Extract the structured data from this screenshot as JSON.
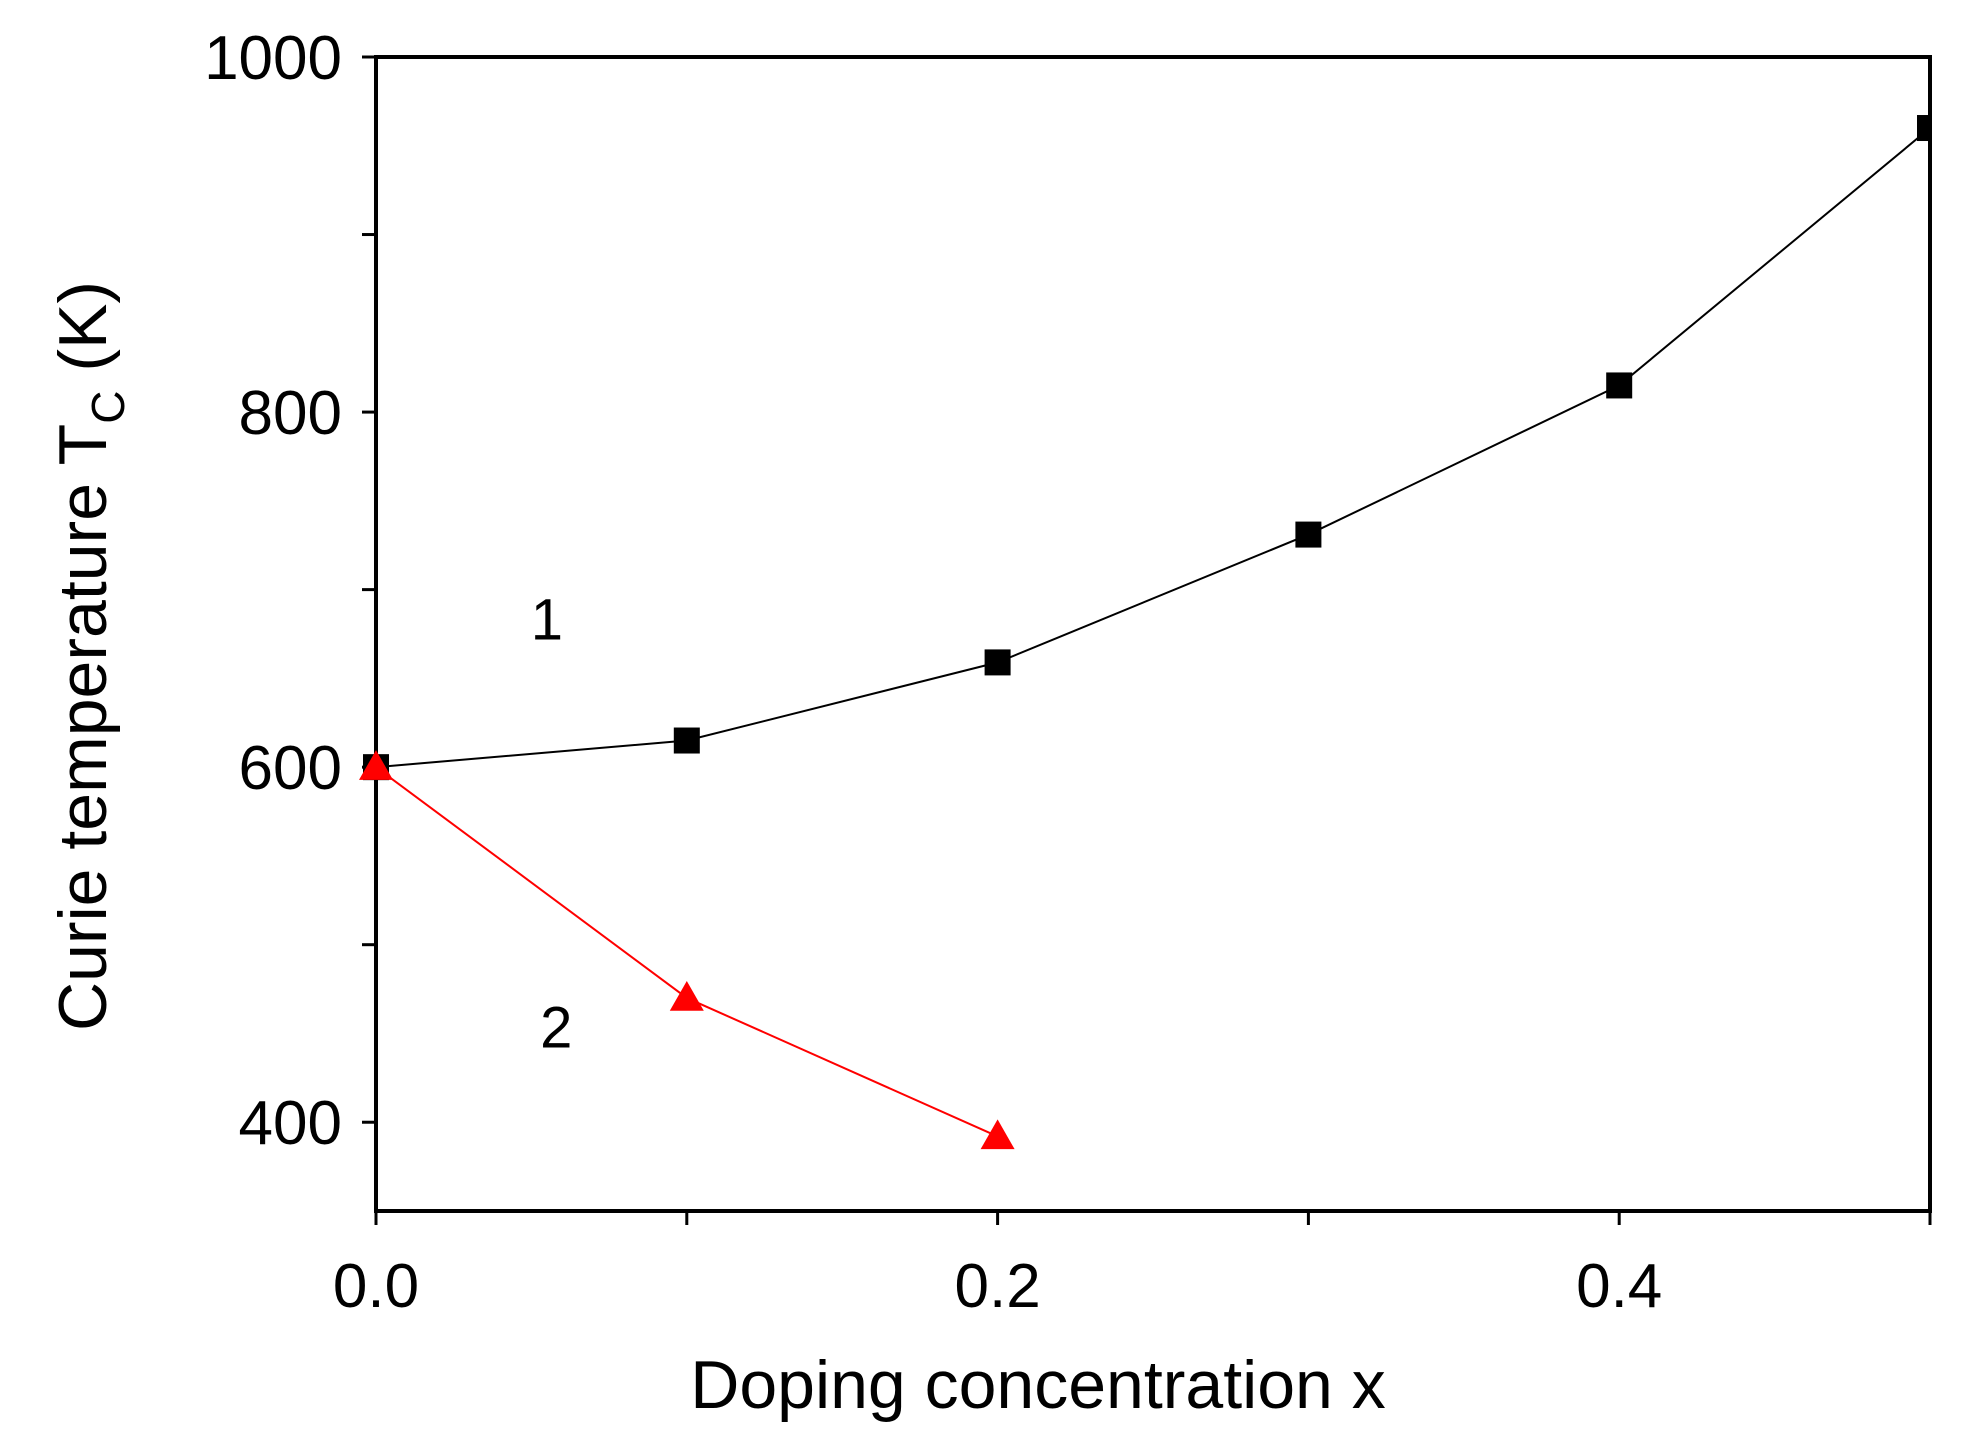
{
  "chart_data": {
    "type": "line",
    "title": "",
    "xlabel": "Doping concentration x",
    "ylabel_main": "Curie temperature T",
    "ylabel_sub": "C",
    "ylabel_unit": " (K)",
    "xlim": [
      0.0,
      0.5
    ],
    "ylim": [
      350,
      1000
    ],
    "x_ticks": [
      0.0,
      0.1,
      0.2,
      0.3,
      0.4,
      0.5
    ],
    "x_tick_labels": [
      {
        "value": 0.0,
        "label": "0.0"
      },
      {
        "value": 0.2,
        "label": "0.2"
      },
      {
        "value": 0.4,
        "label": "0.4"
      }
    ],
    "y_ticks": [
      400,
      500,
      600,
      700,
      800,
      900,
      1000
    ],
    "y_tick_labels": [
      {
        "value": 400,
        "label": "400"
      },
      {
        "value": 600,
        "label": "600"
      },
      {
        "value": 800,
        "label": "800"
      },
      {
        "value": 1000,
        "label": "1000"
      }
    ],
    "grid": false,
    "series": [
      {
        "label": "1",
        "label_at": {
          "x": 0.055,
          "y": 672
        },
        "color": "#000000",
        "marker": "square",
        "x": [
          0.0,
          0.1,
          0.2,
          0.3,
          0.4,
          0.5
        ],
        "y": [
          600,
          615,
          659,
          731,
          815,
          960
        ]
      },
      {
        "label": "2",
        "label_at": {
          "x": 0.058,
          "y": 442
        },
        "color": "#ff0000",
        "marker": "triangle",
        "x": [
          0.0,
          0.1,
          0.2
        ],
        "y": [
          600,
          470,
          392
        ]
      }
    ]
  }
}
